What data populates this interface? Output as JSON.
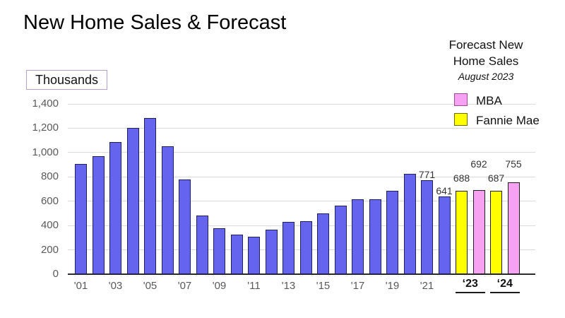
{
  "slide": {
    "title": "New Home Sales & Forecast",
    "units_box": "Thousands"
  },
  "legend": {
    "title_line1": "Forecast New",
    "title_line2": "Home Sales",
    "subtitle": "August 2023",
    "items": [
      {
        "label": "MBA",
        "color": "#F6A1F1",
        "border": "#9A4D96"
      },
      {
        "label": "Fannie Mae",
        "color": "#FFFF00",
        "border": "#6B6B00"
      }
    ]
  },
  "chart_data": {
    "type": "bar",
    "title": "New Home Sales & Forecast",
    "ylabel": "Thousands",
    "ylim": [
      0,
      1400
    ],
    "ytick_interval": 200,
    "y_tick_labels": [
      "0",
      "200",
      "400",
      "600",
      "800",
      "1,000",
      "1,200",
      "1,400"
    ],
    "grid": true,
    "bar_colors": {
      "historical": "#6464EE",
      "mba_forecast": "#F6A1F1",
      "fannie_mae_forecast": "#FFFF00"
    },
    "categories": [
      "'01",
      "'02",
      "'03",
      "'04",
      "'05",
      "'06",
      "'07",
      "'08",
      "'09",
      "'10",
      "'11",
      "'12",
      "'13",
      "'14",
      "'15",
      "'16",
      "'17",
      "'18",
      "'19",
      "'20",
      "'21",
      "'22"
    ],
    "values": [
      908,
      973,
      1086,
      1203,
      1283,
      1051,
      776,
      485,
      375,
      323,
      306,
      368,
      429,
      437,
      501,
      561,
      613,
      617,
      683,
      822,
      771,
      641
    ],
    "x_axis_shown_ticks": [
      "'01",
      "'03",
      "'05",
      "'07",
      "'09",
      "'11",
      "'13",
      "'15",
      "'17",
      "'19",
      "'21"
    ],
    "labeled_years": {
      "'21": 771,
      "'22": 641
    },
    "forecast_groups": [
      {
        "year_label": "‘23",
        "bars": [
          {
            "source": "Fannie Mae",
            "value": 688
          },
          {
            "source": "MBA",
            "value": 692
          }
        ]
      },
      {
        "year_label": "‘24",
        "bars": [
          {
            "source": "Fannie Mae",
            "value": 687
          },
          {
            "source": "MBA",
            "value": 755
          }
        ]
      }
    ],
    "data_labels": [
      {
        "bar": "'21",
        "value": 771
      },
      {
        "bar": "'22",
        "value": 641
      },
      {
        "bar": "‘23 Fannie Mae",
        "value": 688
      },
      {
        "bar": "‘23 MBA",
        "value": 692
      },
      {
        "bar": "‘24 Fannie Mae",
        "value": 687
      },
      {
        "bar": "‘24 MBA",
        "value": 755
      }
    ],
    "legend_position": "top-right"
  }
}
